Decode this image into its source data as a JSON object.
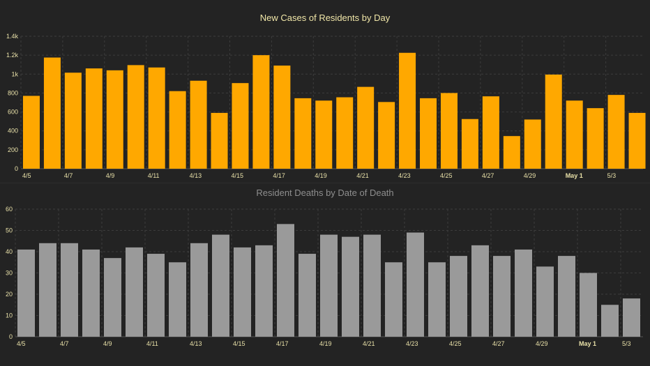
{
  "chart_data": [
    {
      "type": "bar",
      "title": "New Cases of Residents by Day",
      "color": "#ffa800",
      "ylim": [
        0,
        1400
      ],
      "yticks": [
        0,
        200,
        400,
        600,
        800,
        1000,
        1200,
        1400
      ],
      "ytick_labels": [
        "0",
        "200",
        "400",
        "600",
        "800",
        "1k",
        "1.2k",
        "1.4k"
      ],
      "categories": [
        "4/5",
        "4/6",
        "4/7",
        "4/8",
        "4/9",
        "4/10",
        "4/11",
        "4/12",
        "4/13",
        "4/14",
        "4/15",
        "4/16",
        "4/17",
        "4/18",
        "4/19",
        "4/20",
        "4/21",
        "4/22",
        "4/23",
        "4/24",
        "4/25",
        "4/26",
        "4/27",
        "4/28",
        "4/29",
        "4/30",
        "May 1",
        "5/2",
        "5/3",
        "5/4"
      ],
      "x_tick_labels": [
        "4/5",
        "4/7",
        "4/9",
        "4/11",
        "4/13",
        "4/15",
        "4/17",
        "4/19",
        "4/21",
        "4/23",
        "4/25",
        "4/27",
        "4/29",
        "May 1",
        "5/3"
      ],
      "bold_ticks": [
        "May 1"
      ],
      "values": [
        770,
        1175,
        1015,
        1060,
        1040,
        1095,
        1070,
        820,
        930,
        590,
        905,
        1200,
        1090,
        745,
        720,
        755,
        865,
        705,
        1225,
        745,
        800,
        525,
        765,
        345,
        520,
        995,
        720,
        640,
        780,
        590
      ],
      "grid": true
    },
    {
      "type": "bar",
      "title": "Resident Deaths by Date of Death",
      "color": "#9a9a9a",
      "ylim": [
        0,
        60
      ],
      "yticks": [
        0,
        10,
        20,
        30,
        40,
        50,
        60
      ],
      "ytick_labels": [
        "0",
        "10",
        "20",
        "30",
        "40",
        "50",
        "60"
      ],
      "categories": [
        "4/5",
        "4/6",
        "4/7",
        "4/8",
        "4/9",
        "4/10",
        "4/11",
        "4/12",
        "4/13",
        "4/14",
        "4/15",
        "4/16",
        "4/17",
        "4/18",
        "4/19",
        "4/20",
        "4/21",
        "4/22",
        "4/23",
        "4/24",
        "4/25",
        "4/26",
        "4/27",
        "4/28",
        "4/29",
        "4/30",
        "May 1",
        "5/2",
        "5/3"
      ],
      "x_tick_labels": [
        "4/5",
        "4/7",
        "4/9",
        "4/11",
        "4/13",
        "4/15",
        "4/17",
        "4/19",
        "4/21",
        "4/23",
        "4/25",
        "4/27",
        "4/29",
        "May 1",
        "5/3"
      ],
      "bold_ticks": [
        "May 1"
      ],
      "values": [
        41,
        44,
        44,
        41,
        37,
        42,
        39,
        35,
        44,
        48,
        42,
        43,
        53,
        39,
        48,
        47,
        48,
        35,
        49,
        35,
        38,
        43,
        38,
        41,
        33,
        38,
        30,
        15,
        18
      ],
      "grid": true
    }
  ]
}
